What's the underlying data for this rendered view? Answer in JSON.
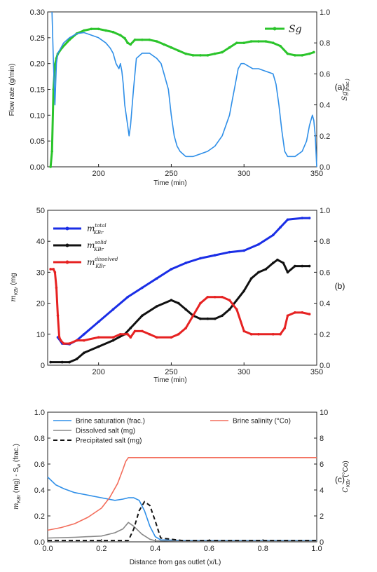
{
  "chart_data": [
    {
      "panel_label": "(a)",
      "type": "line",
      "xlabel": "Time (min)",
      "ylabel_left": "Flow rate (g/min)",
      "ylabel_right_math": {
        "var": "Sg",
        "sub": "(frac.)"
      },
      "xlim": [
        165,
        350
      ],
      "ylim_left": [
        0,
        0.3
      ],
      "ylim_right": [
        0,
        1.0
      ],
      "xticks": [
        200,
        250,
        300,
        350
      ],
      "yticks_left": [
        "0.00",
        "0.05",
        "0.10",
        "0.15",
        "0.20",
        "0.25",
        "0.30"
      ],
      "yticks_right": [
        "0.0",
        "0.2",
        "0.4",
        "0.6",
        "0.8",
        "1.0"
      ],
      "series": [
        {
          "legend_label": "Sg",
          "axis": "right",
          "color": "#2bc42b",
          "marker": "circle",
          "x": [
            167,
            168,
            169,
            170,
            171,
            172,
            175,
            180,
            185,
            190,
            195,
            200,
            205,
            210,
            215,
            218,
            220,
            222,
            225,
            230,
            235,
            240,
            245,
            250,
            255,
            260,
            265,
            270,
            275,
            280,
            285,
            290,
            295,
            300,
            305,
            310,
            315,
            320,
            325,
            330,
            335,
            340,
            345,
            348
          ],
          "y": [
            0.0,
            0.1,
            0.5,
            0.66,
            0.7,
            0.73,
            0.77,
            0.82,
            0.86,
            0.88,
            0.89,
            0.89,
            0.88,
            0.87,
            0.85,
            0.83,
            0.8,
            0.79,
            0.82,
            0.82,
            0.82,
            0.81,
            0.79,
            0.77,
            0.75,
            0.73,
            0.72,
            0.72,
            0.72,
            0.73,
            0.74,
            0.77,
            0.8,
            0.8,
            0.81,
            0.81,
            0.81,
            0.8,
            0.78,
            0.73,
            0.72,
            0.72,
            0.73,
            0.74
          ]
        },
        {
          "legend_label": "",
          "axis": "left",
          "color": "#2f8fe8",
          "x": [
            168,
            169,
            170,
            171,
            172,
            174,
            176,
            178,
            180,
            185,
            190,
            195,
            200,
            205,
            208,
            210,
            212,
            214,
            215,
            216,
            217,
            218,
            219,
            220,
            221,
            222,
            224,
            226,
            230,
            235,
            240,
            243,
            245,
            248,
            250,
            252,
            254,
            256,
            258,
            260,
            265,
            270,
            275,
            280,
            285,
            290,
            292,
            294,
            296,
            298,
            300,
            303,
            306,
            310,
            315,
            320,
            322,
            324,
            326,
            328,
            330,
            335,
            340,
            343,
            345,
            347,
            348,
            349,
            350
          ],
          "y": [
            0.3,
            0.2,
            0.12,
            0.2,
            0.22,
            0.23,
            0.24,
            0.245,
            0.25,
            0.258,
            0.26,
            0.255,
            0.25,
            0.24,
            0.23,
            0.22,
            0.2,
            0.19,
            0.2,
            0.185,
            0.16,
            0.12,
            0.1,
            0.08,
            0.06,
            0.08,
            0.15,
            0.21,
            0.22,
            0.22,
            0.21,
            0.2,
            0.18,
            0.15,
            0.1,
            0.06,
            0.04,
            0.03,
            0.025,
            0.02,
            0.02,
            0.025,
            0.03,
            0.04,
            0.06,
            0.1,
            0.13,
            0.16,
            0.19,
            0.2,
            0.2,
            0.195,
            0.19,
            0.19,
            0.185,
            0.18,
            0.16,
            0.12,
            0.07,
            0.03,
            0.02,
            0.02,
            0.03,
            0.05,
            0.08,
            0.1,
            0.09,
            0.06,
            0.0
          ]
        }
      ]
    },
    {
      "panel_label": "(b)",
      "type": "line",
      "xlabel": "Time (min)",
      "ylabel_left_math": {
        "var": "m",
        "sub": "KBr",
        "unit": " (mg"
      },
      "xlim": [
        165,
        350
      ],
      "ylim_left": [
        0,
        50
      ],
      "ylim_right": [
        0,
        1.0
      ],
      "xticks": [
        200,
        250,
        300,
        350
      ],
      "yticks_left": [
        "0",
        "10",
        "20",
        "30",
        "40",
        "50"
      ],
      "yticks_right": [
        "0.0",
        "0.2",
        "0.4",
        "0.6",
        "0.8",
        "1.0"
      ],
      "series": [
        {
          "legend_label": "m",
          "legend_sup": "total",
          "legend_sub": "KBr",
          "color": "#1a2ee6",
          "marker": "circle",
          "x": [
            172,
            175,
            180,
            185,
            190,
            200,
            210,
            220,
            230,
            240,
            250,
            260,
            270,
            280,
            290,
            300,
            310,
            320,
            325,
            330,
            340,
            345
          ],
          "y": [
            9,
            7,
            6.8,
            8,
            10,
            14,
            18,
            22,
            25,
            28,
            31,
            33,
            34.5,
            35.5,
            36.5,
            37,
            39,
            42,
            44.5,
            47,
            47.5,
            47.5
          ]
        },
        {
          "legend_label": "m",
          "legend_sup": "solid",
          "legend_sub": "KBr",
          "color": "#111111",
          "marker": "circle",
          "x": [
            167,
            175,
            180,
            185,
            190,
            200,
            210,
            218,
            222,
            230,
            240,
            250,
            255,
            260,
            265,
            270,
            275,
            280,
            285,
            290,
            300,
            305,
            310,
            315,
            320,
            323,
            327,
            330,
            335,
            340,
            345
          ],
          "y": [
            1,
            1,
            1,
            2,
            4,
            6,
            8,
            10,
            12,
            16,
            19,
            21,
            20,
            18,
            16,
            15,
            15,
            15,
            16,
            18,
            24,
            28,
            30,
            31,
            33,
            34,
            33,
            30,
            32,
            32,
            32
          ]
        },
        {
          "legend_label": "m",
          "legend_sup": "dissolved",
          "legend_sub": "KBr",
          "color": "#e62222",
          "marker": "circle",
          "x": [
            167,
            169,
            170,
            171,
            172,
            173,
            174,
            176,
            180,
            185,
            190,
            200,
            210,
            215,
            220,
            222,
            225,
            230,
            235,
            240,
            250,
            255,
            260,
            265,
            270,
            275,
            280,
            285,
            290,
            295,
            300,
            305,
            310,
            320,
            325,
            328,
            330,
            335,
            340,
            345
          ],
          "y": [
            31,
            31,
            30,
            25,
            16,
            9,
            8,
            7,
            7,
            8,
            8,
            9,
            9,
            10,
            10,
            9,
            11,
            11,
            10,
            9,
            9,
            10,
            12,
            16,
            20,
            22,
            22,
            22,
            21,
            18,
            11,
            10,
            10,
            10,
            10,
            12,
            16,
            17,
            17,
            16.5
          ]
        }
      ]
    },
    {
      "panel_label": "(c)",
      "type": "line",
      "xlabel": "Distance from gas outlet (x/L)",
      "ylabel_left_math": {
        "prefix": "m",
        "sub1": "KBr",
        "mid": " (mg) - S",
        "sub2": "w",
        "suffix": " (frac.)"
      },
      "ylabel_right_math": {
        "var": "C",
        "sub": "KBr",
        "unit": " (°Co)"
      },
      "xlim": [
        0,
        1.0
      ],
      "ylim_left": [
        0,
        1.0
      ],
      "ylim_right": [
        0,
        10
      ],
      "xticks": [
        "0.0",
        "0.2",
        "0.4",
        "0.6",
        "0.8",
        "1.0"
      ],
      "yticks_left": [
        "0.0",
        "0.2",
        "0.4",
        "0.6",
        "0.8",
        "1.0"
      ],
      "yticks_right": [
        "0",
        "2",
        "4",
        "6",
        "8",
        "10"
      ],
      "series": [
        {
          "legend_label": "Brine saturation (frac.)",
          "axis": "left",
          "color": "#2f8fe8",
          "style": "solid",
          "x": [
            0.0,
            0.03,
            0.06,
            0.1,
            0.15,
            0.2,
            0.25,
            0.28,
            0.3,
            0.32,
            0.34,
            0.36,
            0.38,
            0.4,
            0.42,
            0.5,
            0.6,
            0.7,
            0.8,
            0.9,
            1.0
          ],
          "y": [
            0.5,
            0.44,
            0.41,
            0.38,
            0.36,
            0.34,
            0.32,
            0.33,
            0.34,
            0.34,
            0.32,
            0.24,
            0.12,
            0.04,
            0.015,
            0.01,
            0.01,
            0.01,
            0.01,
            0.01,
            0.01
          ]
        },
        {
          "legend_label": "Dissolved salt (mg)",
          "axis": "left",
          "color": "#888888",
          "style": "solid",
          "x": [
            0.0,
            0.1,
            0.2,
            0.25,
            0.28,
            0.3,
            0.32,
            0.35,
            0.38,
            0.4,
            0.5,
            0.6,
            0.8,
            1.0
          ],
          "y": [
            0.03,
            0.035,
            0.045,
            0.07,
            0.1,
            0.15,
            0.12,
            0.06,
            0.02,
            0.008,
            0.005,
            0.005,
            0.005,
            0.005
          ]
        },
        {
          "legend_label": "Precipitated salt (mg)",
          "axis": "left",
          "color": "#111111",
          "style": "dashed",
          "x": [
            0.0,
            0.2,
            0.3,
            0.32,
            0.34,
            0.36,
            0.38,
            0.4,
            0.42,
            0.5,
            0.7,
            1.0
          ],
          "y": [
            0.01,
            0.01,
            0.01,
            0.1,
            0.24,
            0.31,
            0.28,
            0.16,
            0.03,
            0.01,
            0.01,
            0.01
          ]
        },
        {
          "legend_label": "Brine salinity (°Co)",
          "axis": "right",
          "color": "#f36d5b",
          "style": "solid",
          "x": [
            0.0,
            0.05,
            0.1,
            0.15,
            0.2,
            0.23,
            0.26,
            0.28,
            0.29,
            0.3,
            0.31,
            0.4,
            0.6,
            0.8,
            1.0
          ],
          "y": [
            0.9,
            1.1,
            1.4,
            1.9,
            2.6,
            3.4,
            4.5,
            5.6,
            6.2,
            6.5,
            6.5,
            6.5,
            6.5,
            6.5,
            6.5
          ]
        }
      ]
    }
  ]
}
